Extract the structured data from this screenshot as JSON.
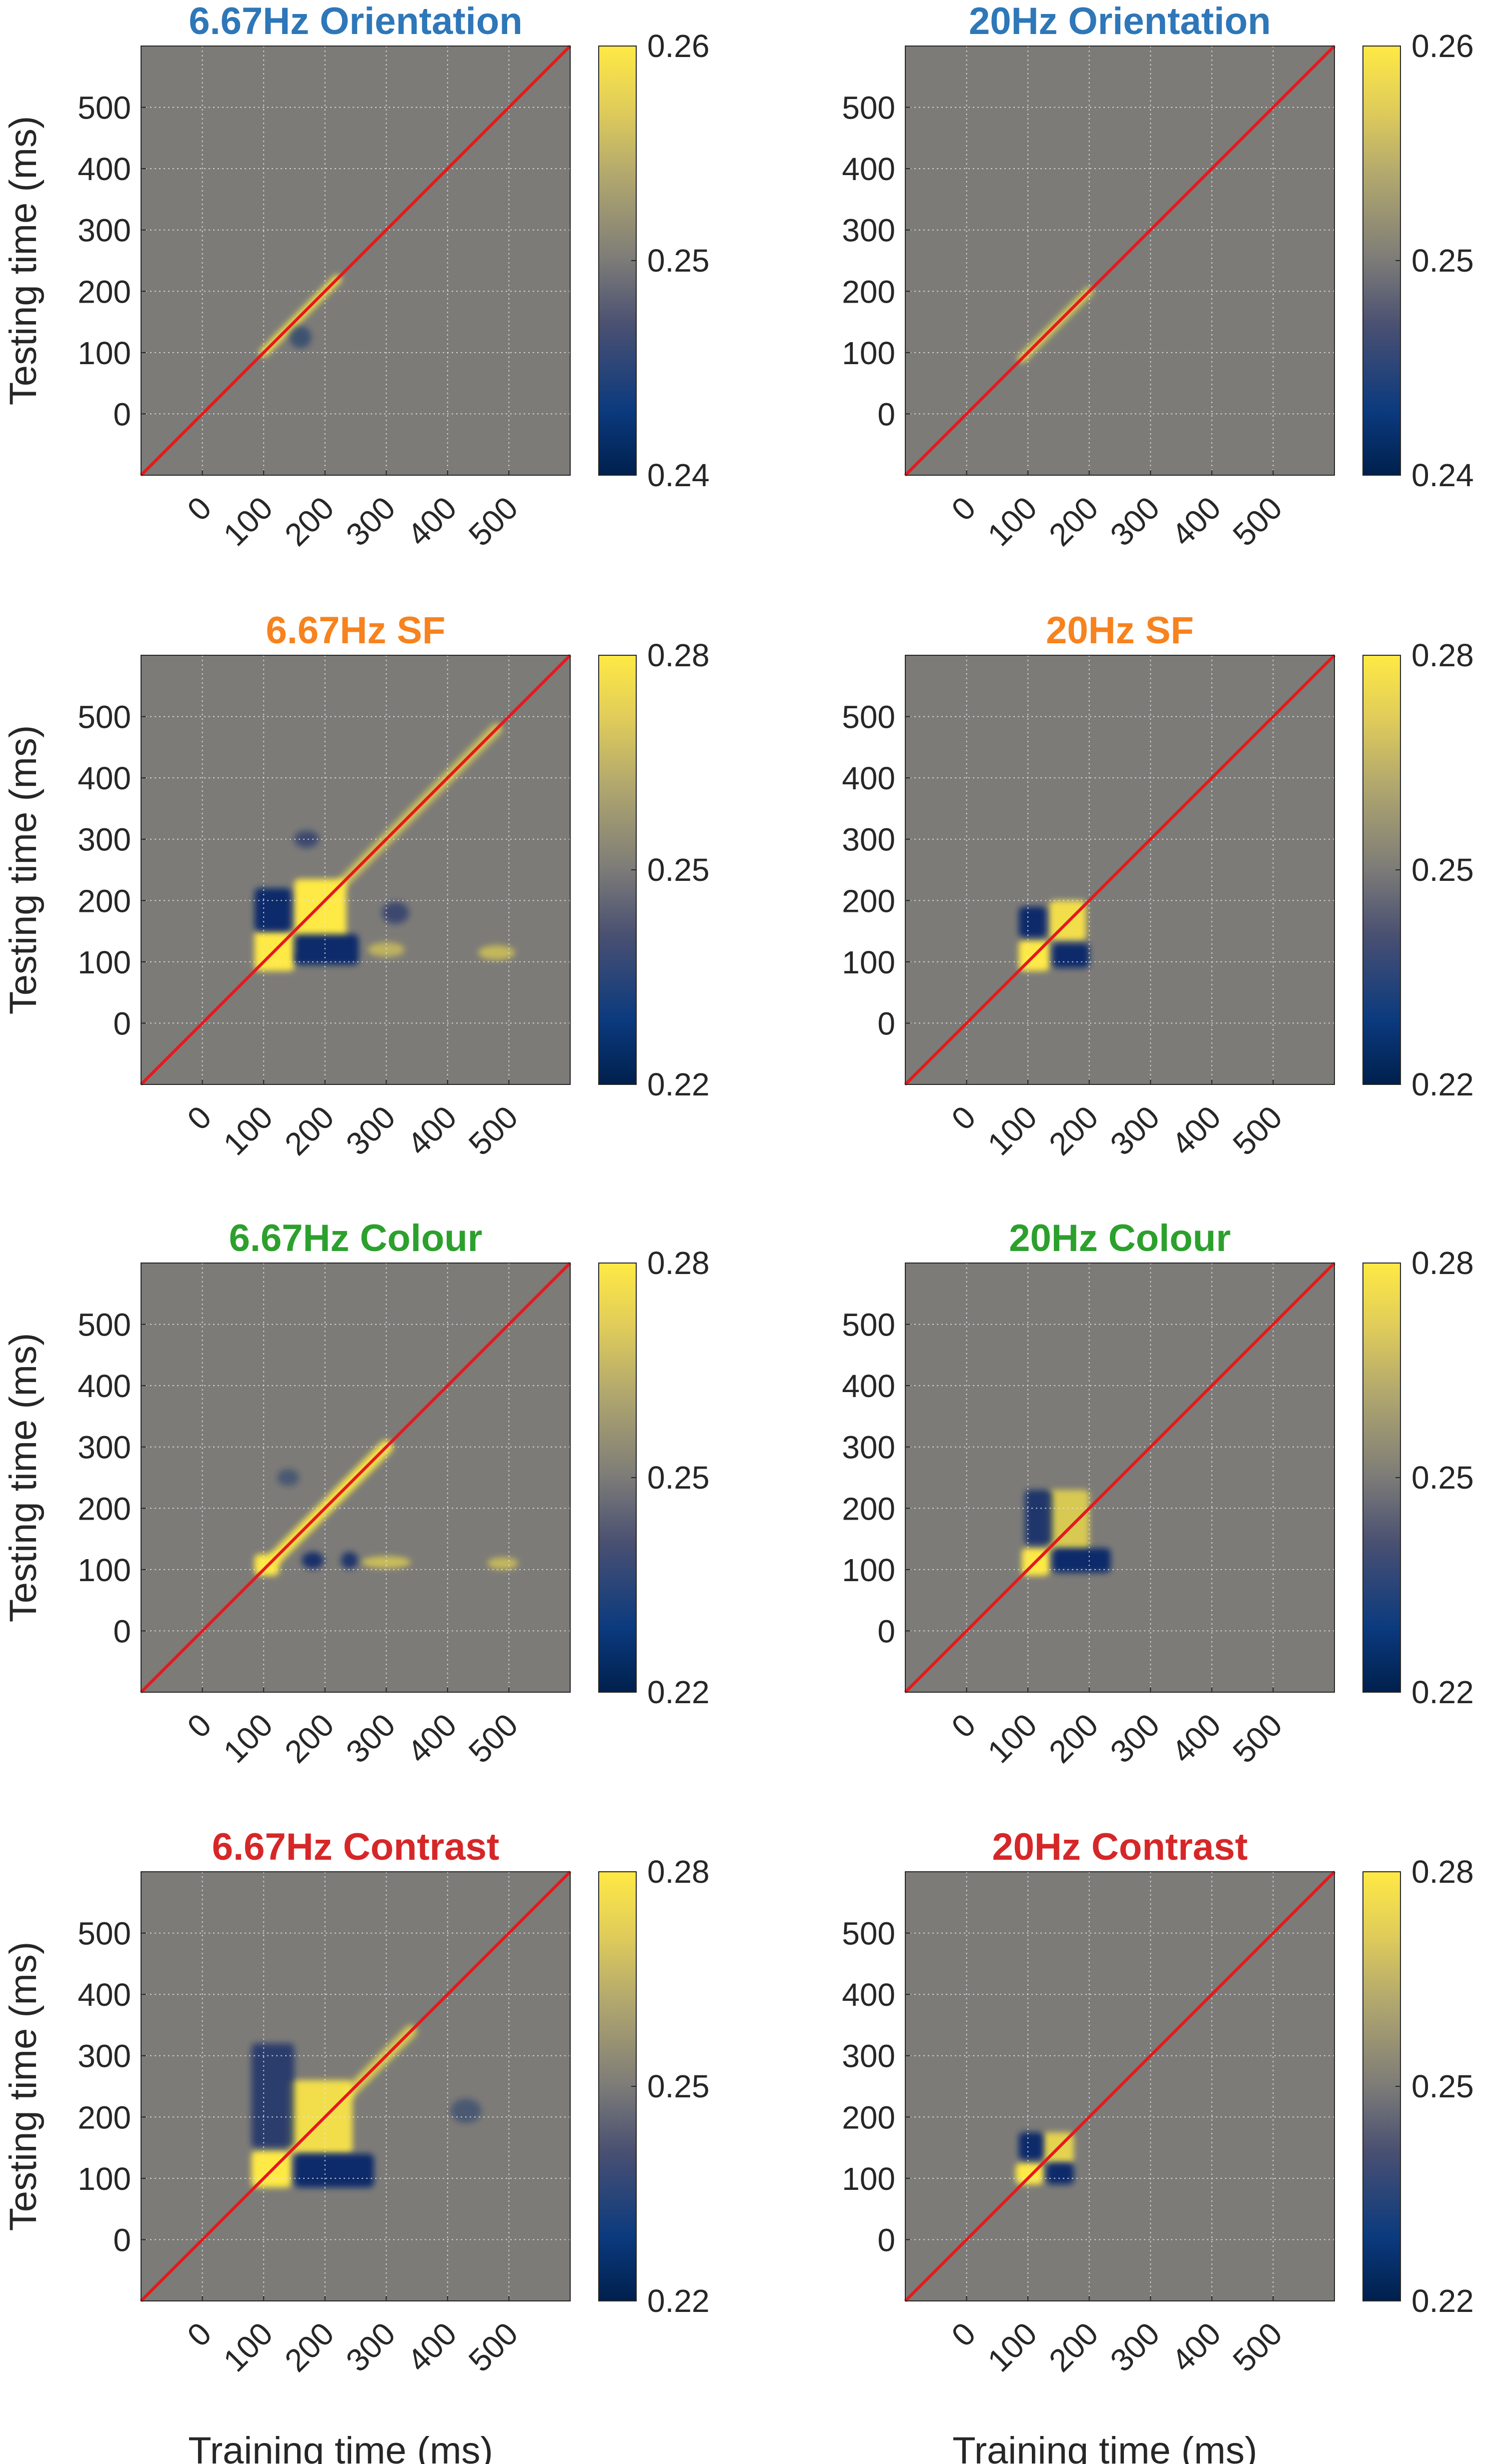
{
  "chart_data": [
    {
      "type": "heatmap",
      "title": "6.67Hz Orientation",
      "title_color": "#2E77B8",
      "xlabel": "",
      "ylabel": "Testing time (ms)",
      "x_ticks": [
        "0",
        "100",
        "200",
        "300",
        "400",
        "500"
      ],
      "y_ticks": [
        "0",
        "100",
        "200",
        "300",
        "400",
        "500"
      ],
      "xlim": [
        -100,
        600
      ],
      "ylim": [
        -100,
        600
      ],
      "grid": true,
      "diagonal_color": "#E31A1C",
      "colorbar": {
        "ticks": [
          "0.24",
          "0.25",
          "0.26"
        ],
        "min": 0.24,
        "max": 0.26
      },
      "features": [
        {
          "type": "diag_band",
          "from": 100,
          "to": 220,
          "polarity": "high",
          "strength": 0.9,
          "width": 14
        },
        {
          "type": "blob",
          "x": 160,
          "y": 125,
          "rx": 18,
          "ry": 18,
          "polarity": "low",
          "strength": 0.5
        }
      ]
    },
    {
      "type": "heatmap",
      "title": "20Hz Orientation",
      "title_color": "#2E77B8",
      "xlabel": "",
      "ylabel": "",
      "x_ticks": [
        "0",
        "100",
        "200",
        "300",
        "400",
        "500"
      ],
      "y_ticks": [
        "0",
        "100",
        "200",
        "300",
        "400",
        "500"
      ],
      "xlim": [
        -100,
        600
      ],
      "ylim": [
        -100,
        600
      ],
      "grid": true,
      "diagonal_color": "#E31A1C",
      "colorbar": {
        "ticks": [
          "0.24",
          "0.25",
          "0.26"
        ],
        "min": 0.24,
        "max": 0.26
      },
      "features": [
        {
          "type": "diag_band",
          "from": 90,
          "to": 200,
          "polarity": "high",
          "strength": 0.75,
          "width": 14
        }
      ]
    },
    {
      "type": "heatmap",
      "title": "6.67Hz SF",
      "title_color": "#F7821E",
      "xlabel": "",
      "ylabel": "Testing time (ms)",
      "x_ticks": [
        "0",
        "100",
        "200",
        "300",
        "400",
        "500"
      ],
      "y_ticks": [
        "0",
        "100",
        "200",
        "300",
        "400",
        "500"
      ],
      "xlim": [
        -100,
        600
      ],
      "ylim": [
        -100,
        600
      ],
      "grid": true,
      "diagonal_color": "#E31A1C",
      "colorbar": {
        "ticks": [
          "0.22",
          "0.25",
          "0.28"
        ],
        "min": 0.22,
        "max": 0.28
      },
      "features": [
        {
          "type": "box",
          "x0": 150,
          "x1": 235,
          "y0": 110,
          "y1": 235,
          "polarity": "high",
          "strength": 1.0
        },
        {
          "type": "box",
          "x0": 85,
          "x1": 150,
          "y0": 85,
          "y1": 150,
          "polarity": "high",
          "strength": 1.0
        },
        {
          "type": "box",
          "x0": 85,
          "x1": 145,
          "y0": 150,
          "y1": 220,
          "polarity": "low",
          "strength": 1.0
        },
        {
          "type": "box",
          "x0": 150,
          "x1": 255,
          "y0": 95,
          "y1": 145,
          "polarity": "low",
          "strength": 1.0
        },
        {
          "type": "blob",
          "x": 170,
          "y": 300,
          "rx": 20,
          "ry": 14,
          "polarity": "low",
          "strength": 0.6
        },
        {
          "type": "blob",
          "x": 315,
          "y": 180,
          "rx": 22,
          "ry": 18,
          "polarity": "low",
          "strength": 0.6
        },
        {
          "type": "blob",
          "x": 300,
          "y": 120,
          "rx": 30,
          "ry": 12,
          "polarity": "high",
          "strength": 0.5
        },
        {
          "type": "blob",
          "x": 480,
          "y": 115,
          "rx": 30,
          "ry": 12,
          "polarity": "high",
          "strength": 0.55
        },
        {
          "type": "diag_band",
          "from": 230,
          "to": 480,
          "polarity": "high",
          "strength": 0.65,
          "width": 18
        }
      ]
    },
    {
      "type": "heatmap",
      "title": "20Hz SF",
      "title_color": "#F7821E",
      "xlabel": "",
      "ylabel": "",
      "x_ticks": [
        "0",
        "100",
        "200",
        "300",
        "400",
        "500"
      ],
      "y_ticks": [
        "0",
        "100",
        "200",
        "300",
        "400",
        "500"
      ],
      "xlim": [
        -100,
        600
      ],
      "ylim": [
        -100,
        600
      ],
      "grid": true,
      "diagonal_color": "#E31A1C",
      "colorbar": {
        "ticks": [
          "0.22",
          "0.25",
          "0.28"
        ],
        "min": 0.22,
        "max": 0.28
      },
      "features": [
        {
          "type": "box",
          "x0": 85,
          "x1": 135,
          "y0": 85,
          "y1": 135,
          "polarity": "high",
          "strength": 1.0
        },
        {
          "type": "box",
          "x0": 135,
          "x1": 195,
          "y0": 135,
          "y1": 200,
          "polarity": "high",
          "strength": 0.9
        },
        {
          "type": "box",
          "x0": 85,
          "x1": 130,
          "y0": 140,
          "y1": 190,
          "polarity": "low",
          "strength": 1.0
        },
        {
          "type": "box",
          "x0": 140,
          "x1": 200,
          "y0": 90,
          "y1": 130,
          "polarity": "low",
          "strength": 1.0
        }
      ]
    },
    {
      "type": "heatmap",
      "title": "6.67Hz Colour",
      "title_color": "#2CA02C",
      "xlabel": "",
      "ylabel": "Testing time (ms)",
      "x_ticks": [
        "0",
        "100",
        "200",
        "300",
        "400",
        "500"
      ],
      "y_ticks": [
        "0",
        "100",
        "200",
        "300",
        "400",
        "500"
      ],
      "xlim": [
        -100,
        600
      ],
      "ylim": [
        -100,
        600
      ],
      "grid": true,
      "diagonal_color": "#E31A1C",
      "colorbar": {
        "ticks": [
          "0.22",
          "0.25",
          "0.28"
        ],
        "min": 0.22,
        "max": 0.28
      },
      "features": [
        {
          "type": "box",
          "x0": 85,
          "x1": 125,
          "y0": 90,
          "y1": 125,
          "polarity": "high",
          "strength": 1.0
        },
        {
          "type": "diag_band",
          "from": 120,
          "to": 300,
          "polarity": "high",
          "strength": 0.95,
          "width": 22
        },
        {
          "type": "blob",
          "x": 180,
          "y": 115,
          "rx": 18,
          "ry": 14,
          "polarity": "low",
          "strength": 0.9
        },
        {
          "type": "blob",
          "x": 240,
          "y": 115,
          "rx": 14,
          "ry": 14,
          "polarity": "low",
          "strength": 0.85
        },
        {
          "type": "blob",
          "x": 300,
          "y": 112,
          "rx": 40,
          "ry": 10,
          "polarity": "high",
          "strength": 0.6
        },
        {
          "type": "blob",
          "x": 490,
          "y": 110,
          "rx": 25,
          "ry": 10,
          "polarity": "high",
          "strength": 0.55
        },
        {
          "type": "blob",
          "x": 140,
          "y": 250,
          "rx": 18,
          "ry": 14,
          "polarity": "low",
          "strength": 0.4
        }
      ]
    },
    {
      "type": "heatmap",
      "title": "20Hz Colour",
      "title_color": "#2CA02C",
      "xlabel": "",
      "ylabel": "",
      "x_ticks": [
        "0",
        "100",
        "200",
        "300",
        "400",
        "500"
      ],
      "y_ticks": [
        "0",
        "100",
        "200",
        "300",
        "400",
        "500"
      ],
      "xlim": [
        -100,
        600
      ],
      "ylim": [
        -100,
        600
      ],
      "grid": true,
      "diagonal_color": "#E31A1C",
      "colorbar": {
        "ticks": [
          "0.22",
          "0.25",
          "0.28"
        ],
        "min": 0.22,
        "max": 0.28
      },
      "features": [
        {
          "type": "box",
          "x0": 90,
          "x1": 135,
          "y0": 90,
          "y1": 135,
          "polarity": "high",
          "strength": 1.0
        },
        {
          "type": "box",
          "x0": 130,
          "x1": 200,
          "y0": 130,
          "y1": 230,
          "polarity": "high",
          "strength": 0.7
        },
        {
          "type": "box",
          "x0": 95,
          "x1": 140,
          "y0": 140,
          "y1": 230,
          "polarity": "low",
          "strength": 0.85
        },
        {
          "type": "box",
          "x0": 140,
          "x1": 235,
          "y0": 95,
          "y1": 135,
          "polarity": "low",
          "strength": 1.0
        }
      ]
    },
    {
      "type": "heatmap",
      "title": "6.67Hz Contrast",
      "title_color": "#D62728",
      "xlabel": "Training time (ms)",
      "ylabel": "Testing time (ms)",
      "x_ticks": [
        "0",
        "100",
        "200",
        "300",
        "400",
        "500"
      ],
      "y_ticks": [
        "0",
        "100",
        "200",
        "300",
        "400",
        "500"
      ],
      "xlim": [
        -100,
        600
      ],
      "ylim": [
        -100,
        600
      ],
      "grid": true,
      "diagonal_color": "#E31A1C",
      "colorbar": {
        "ticks": [
          "0.22",
          "0.25",
          "0.28"
        ],
        "min": 0.22,
        "max": 0.28
      },
      "features": [
        {
          "type": "box",
          "x0": 80,
          "x1": 145,
          "y0": 85,
          "y1": 145,
          "polarity": "high",
          "strength": 1.0
        },
        {
          "type": "box",
          "x0": 140,
          "x1": 245,
          "y0": 140,
          "y1": 260,
          "polarity": "high",
          "strength": 0.9
        },
        {
          "type": "box",
          "x0": 80,
          "x1": 150,
          "y0": 150,
          "y1": 320,
          "polarity": "low",
          "strength": 0.75
        },
        {
          "type": "box",
          "x0": 150,
          "x1": 280,
          "y0": 85,
          "y1": 140,
          "polarity": "low",
          "strength": 1.0
        },
        {
          "type": "diag_band",
          "from": 240,
          "to": 340,
          "polarity": "high",
          "strength": 0.7,
          "width": 20
        },
        {
          "type": "blob",
          "x": 430,
          "y": 210,
          "rx": 25,
          "ry": 20,
          "polarity": "low",
          "strength": 0.4
        }
      ]
    },
    {
      "type": "heatmap",
      "title": "20Hz Contrast",
      "title_color": "#D62728",
      "xlabel": "Training time (ms)",
      "ylabel": "",
      "x_ticks": [
        "0",
        "100",
        "200",
        "300",
        "400",
        "500"
      ],
      "y_ticks": [
        "0",
        "100",
        "200",
        "300",
        "400",
        "500"
      ],
      "xlim": [
        -100,
        600
      ],
      "ylim": [
        -100,
        600
      ],
      "grid": true,
      "diagonal_color": "#E31A1C",
      "colorbar": {
        "ticks": [
          "0.22",
          "0.25",
          "0.28"
        ],
        "min": 0.22,
        "max": 0.28
      },
      "features": [
        {
          "type": "box",
          "x0": 80,
          "x1": 125,
          "y0": 90,
          "y1": 125,
          "polarity": "high",
          "strength": 1.0
        },
        {
          "type": "box",
          "x0": 125,
          "x1": 175,
          "y0": 125,
          "y1": 175,
          "polarity": "high",
          "strength": 0.8
        },
        {
          "type": "box",
          "x0": 85,
          "x1": 125,
          "y0": 130,
          "y1": 175,
          "polarity": "low",
          "strength": 1.0
        },
        {
          "type": "box",
          "x0": 130,
          "x1": 175,
          "y0": 90,
          "y1": 125,
          "polarity": "low",
          "strength": 1.0
        }
      ]
    }
  ]
}
